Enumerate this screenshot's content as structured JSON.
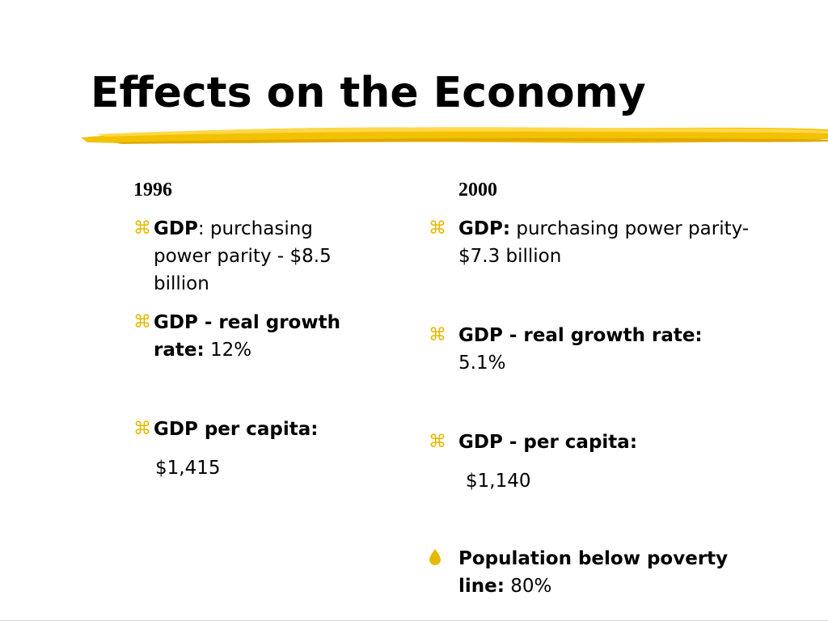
{
  "slide": {
    "title": "Effects on the Economy",
    "accent_color": "#f2c200"
  },
  "col_1996": {
    "heading": "1996",
    "bullet_icon": "command-icon",
    "items": [
      {
        "label": "GDP",
        "sep": ": purchasing",
        "rest": "power parity - $8.5 billion"
      },
      {
        "label": "GDP - real growth rate:",
        "value": " 12%"
      },
      {
        "label": "GDP per capita:",
        "value": "$1,415"
      }
    ]
  },
  "col_2000": {
    "heading": "2000",
    "bullet_icon": "command-icon",
    "items": [
      {
        "label": "GDP:",
        "value": " purchasing power parity-  $7.3 billion"
      },
      {
        "label": "GDP - real growth rate:",
        "value": "5.1%"
      },
      {
        "label": "GDP - per capita:",
        "value": "$1,140"
      },
      {
        "label": "Population below poverty line:",
        "value": " 80%",
        "bullet_icon": "drop-icon"
      }
    ]
  }
}
